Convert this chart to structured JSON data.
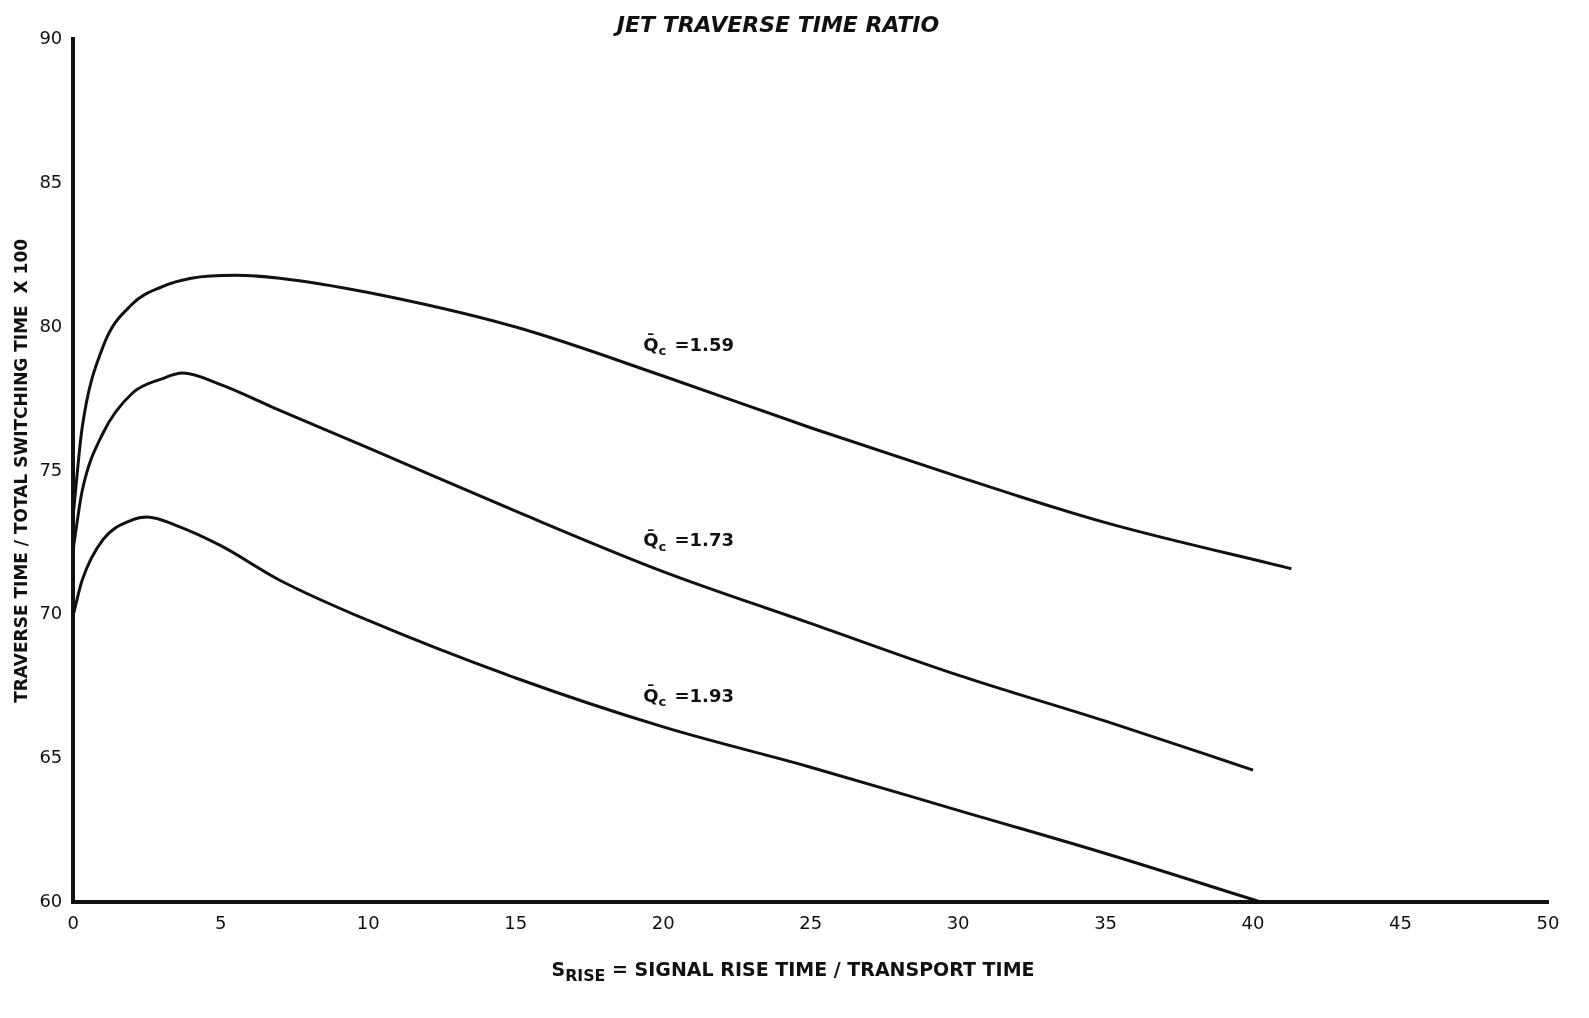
{
  "chart_data": {
    "type": "line",
    "title": "JET TRAVERSE TIME RATIO",
    "xlabel": "S$_{RISE}$ = SIGNAL RISE TIME / TRANSPORT TIME",
    "ylabel": "TRAVERSE TIME / TOTAL SWITCHING TIME  X 100",
    "series": [
      {
        "color": "#111111",
        "x": [
          0,
          0.3,
          1,
          2,
          3,
          4,
          5.5,
          7,
          10,
          15,
          20,
          25,
          30,
          35,
          41.3
        ],
        "values": [
          73.5,
          76.5,
          79.3,
          80.8,
          81.4,
          81.7,
          81.8,
          81.7,
          81.2,
          80.0,
          78.3,
          76.5,
          74.8,
          73.2,
          71.6
        ]
      },
      {
        "color": "#111111",
        "x": [
          0,
          0.3,
          1,
          2,
          3,
          3.7,
          5,
          7,
          10,
          15,
          20,
          25,
          30,
          35,
          40
        ],
        "values": [
          72.3,
          74.3,
          76.3,
          77.7,
          78.2,
          78.4,
          78.0,
          77.1,
          75.8,
          73.6,
          71.5,
          69.7,
          67.9,
          66.3,
          64.6
        ]
      },
      {
        "color": "#111111",
        "x": [
          0,
          0.3,
          1,
          2,
          2.5,
          3.5,
          5,
          7,
          10,
          15,
          20,
          25,
          30,
          35,
          40.3
        ],
        "values": [
          70,
          71.2,
          72.6,
          73.3,
          73.4,
          73.1,
          72.4,
          71.2,
          69.8,
          67.8,
          66.1,
          64.7,
          63.2,
          61.7,
          60
        ]
      }
    ],
    "annotations": [
      "Q̄$_{c}$ =1.59",
      "Q̄$_{c}$ =1.73",
      "Q̄$_{c}$ =1.93"
    ],
    "xlim": [
      0,
      50
    ],
    "xticks": [
      0,
      5,
      10,
      15,
      20,
      25,
      30,
      35,
      40,
      45,
      50
    ],
    "ylim": [
      60,
      90
    ],
    "yticks": [
      60,
      65,
      70,
      75,
      80,
      85,
      90
    ],
    "grid": false,
    "legend": false,
    "marker": "none",
    "line_style": "solid"
  }
}
